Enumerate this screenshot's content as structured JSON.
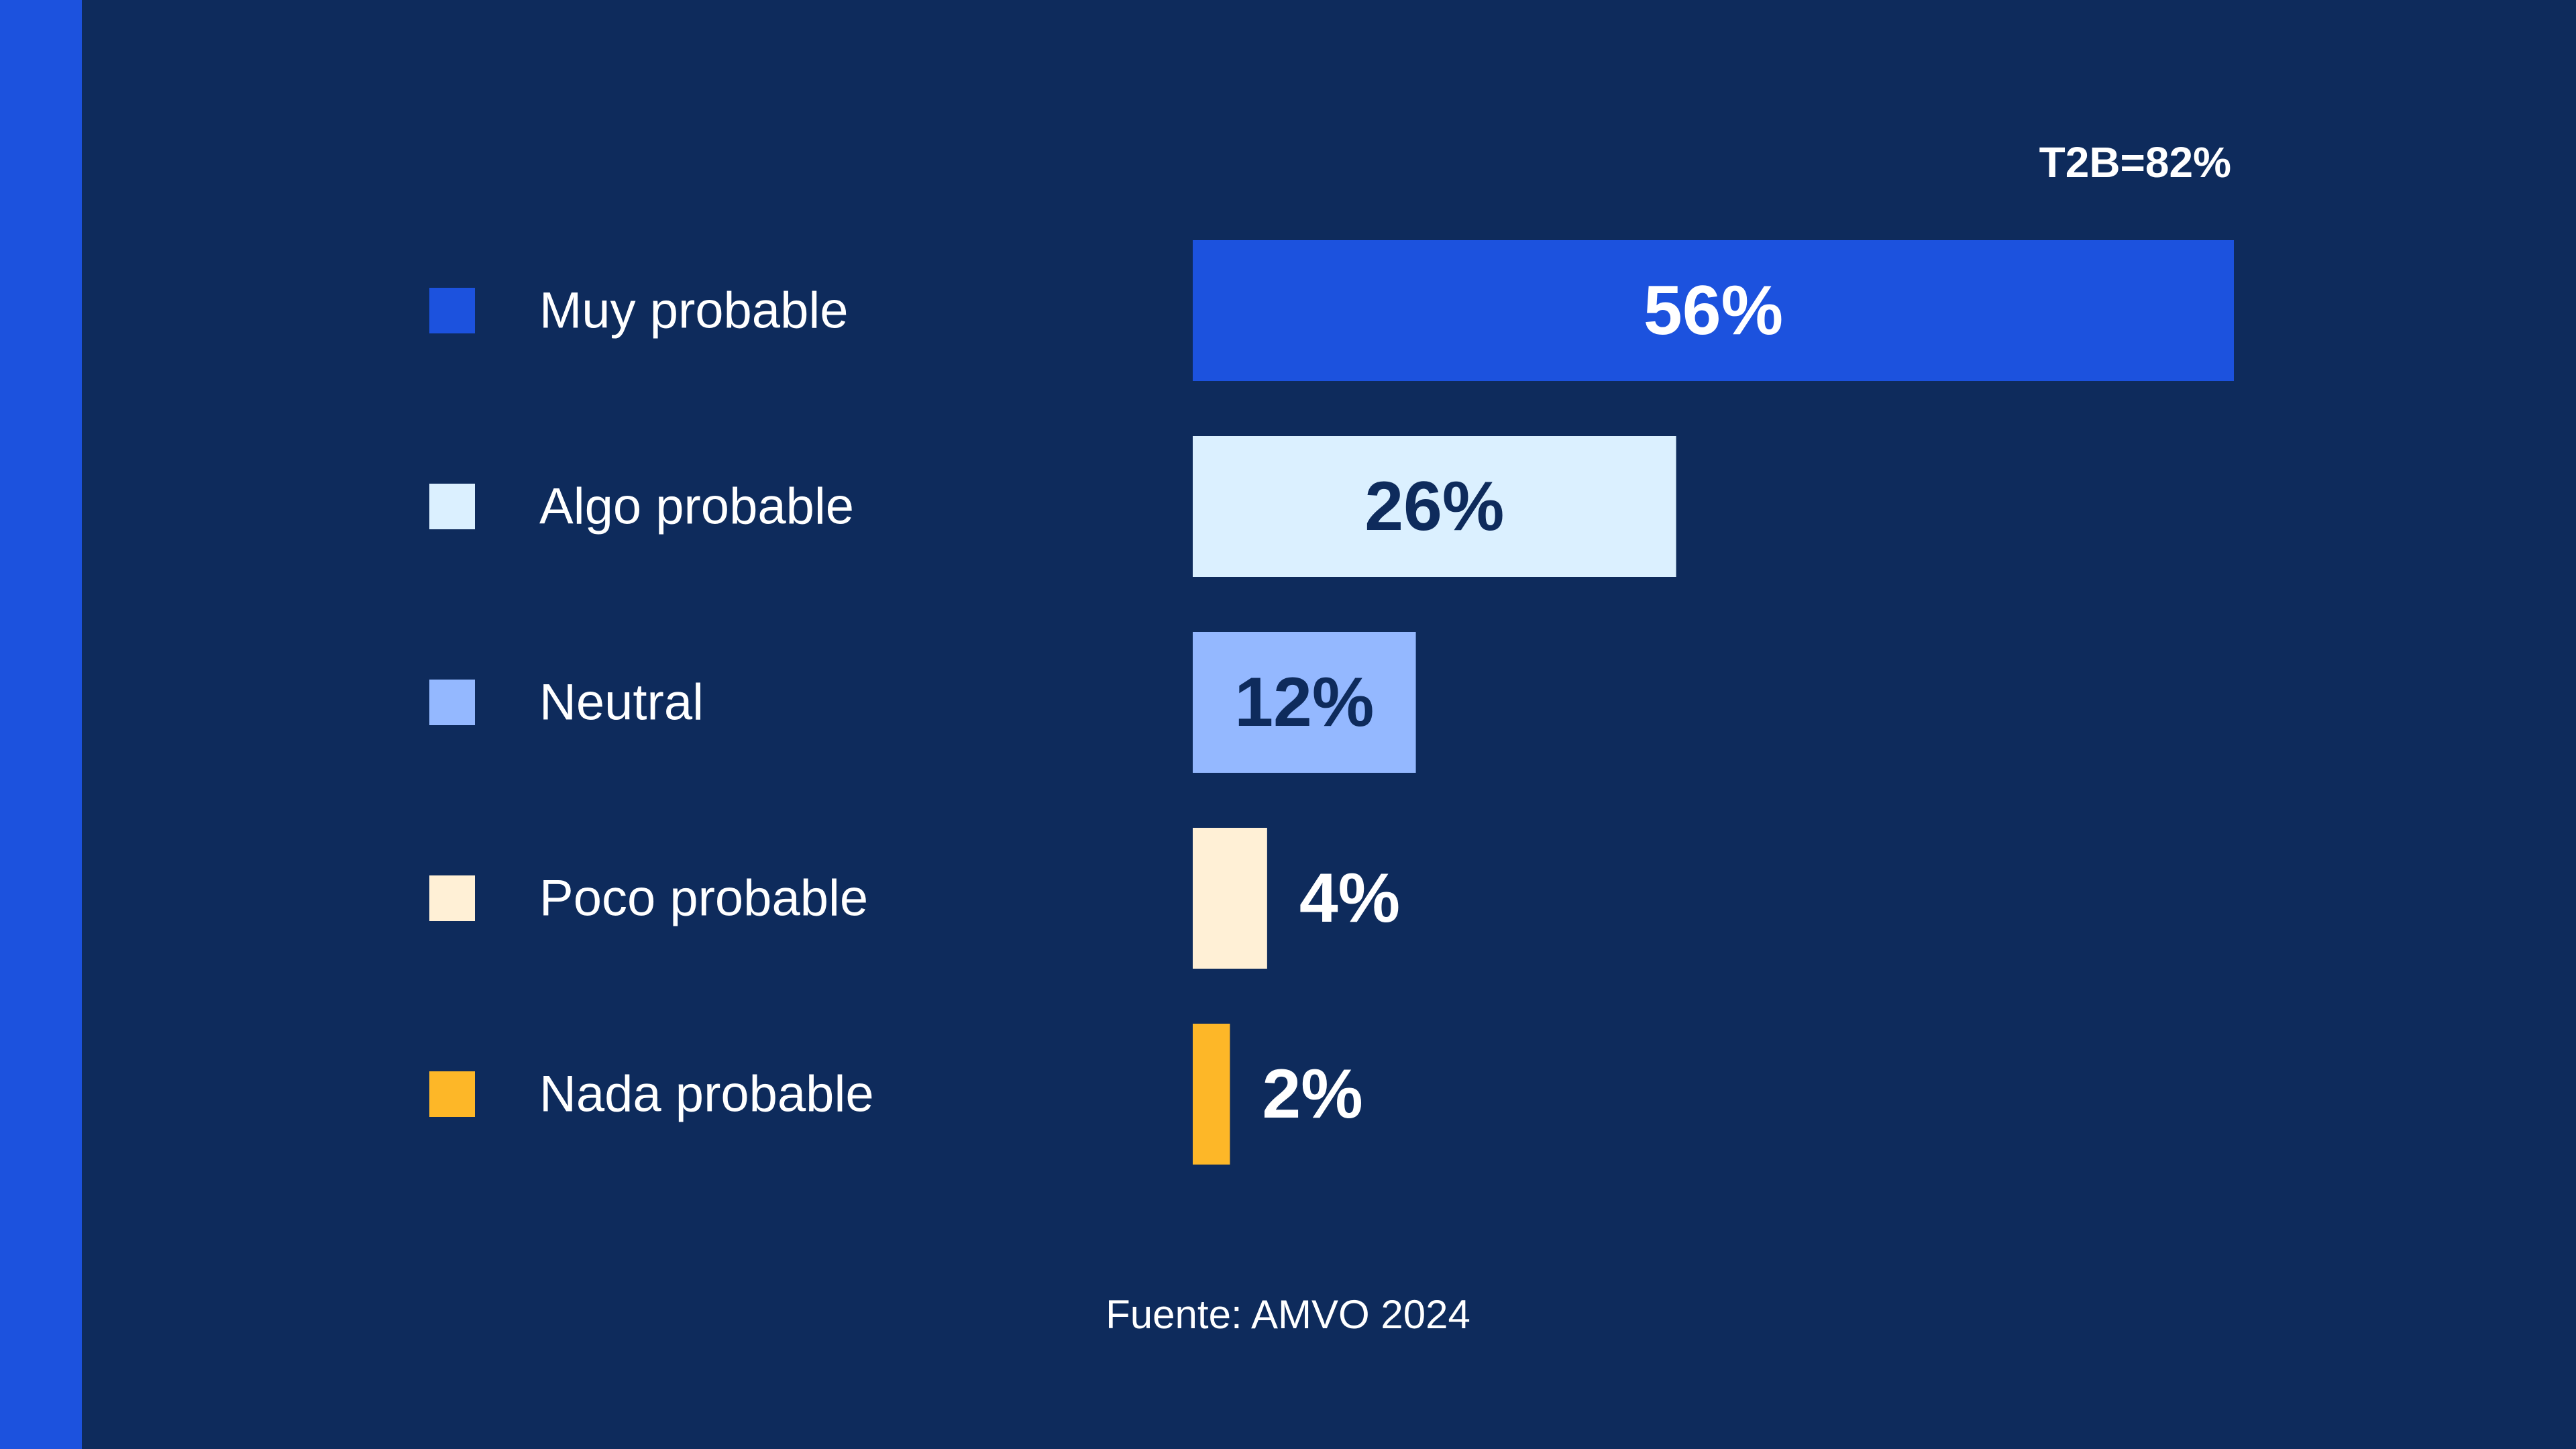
{
  "chart_data": {
    "type": "bar",
    "orientation": "horizontal",
    "categories": [
      "Muy probable",
      "Algo probable",
      "Neutral",
      "Poco probable",
      "Nada probable"
    ],
    "values": [
      56,
      26,
      12,
      4,
      2
    ],
    "value_labels": [
      "56%",
      "26%",
      "12%",
      "4%",
      "2%"
    ],
    "colors": [
      "#1c52de",
      "#dbf0ff",
      "#94b8ff",
      "#fff0d6",
      "#fdb728"
    ],
    "label_colors": [
      "#ffffff",
      "#0e2b5c",
      "#0e2b5c",
      "#ffffff",
      "#ffffff"
    ],
    "annotation": "T2B=82%",
    "source": "Fuente: AMVO 2024",
    "legend": "left",
    "grid": false,
    "xlim": [
      0,
      56
    ]
  },
  "colors": {
    "background": "#0e2b5c",
    "accent": "#1c52de",
    "text": "#ffffff"
  }
}
